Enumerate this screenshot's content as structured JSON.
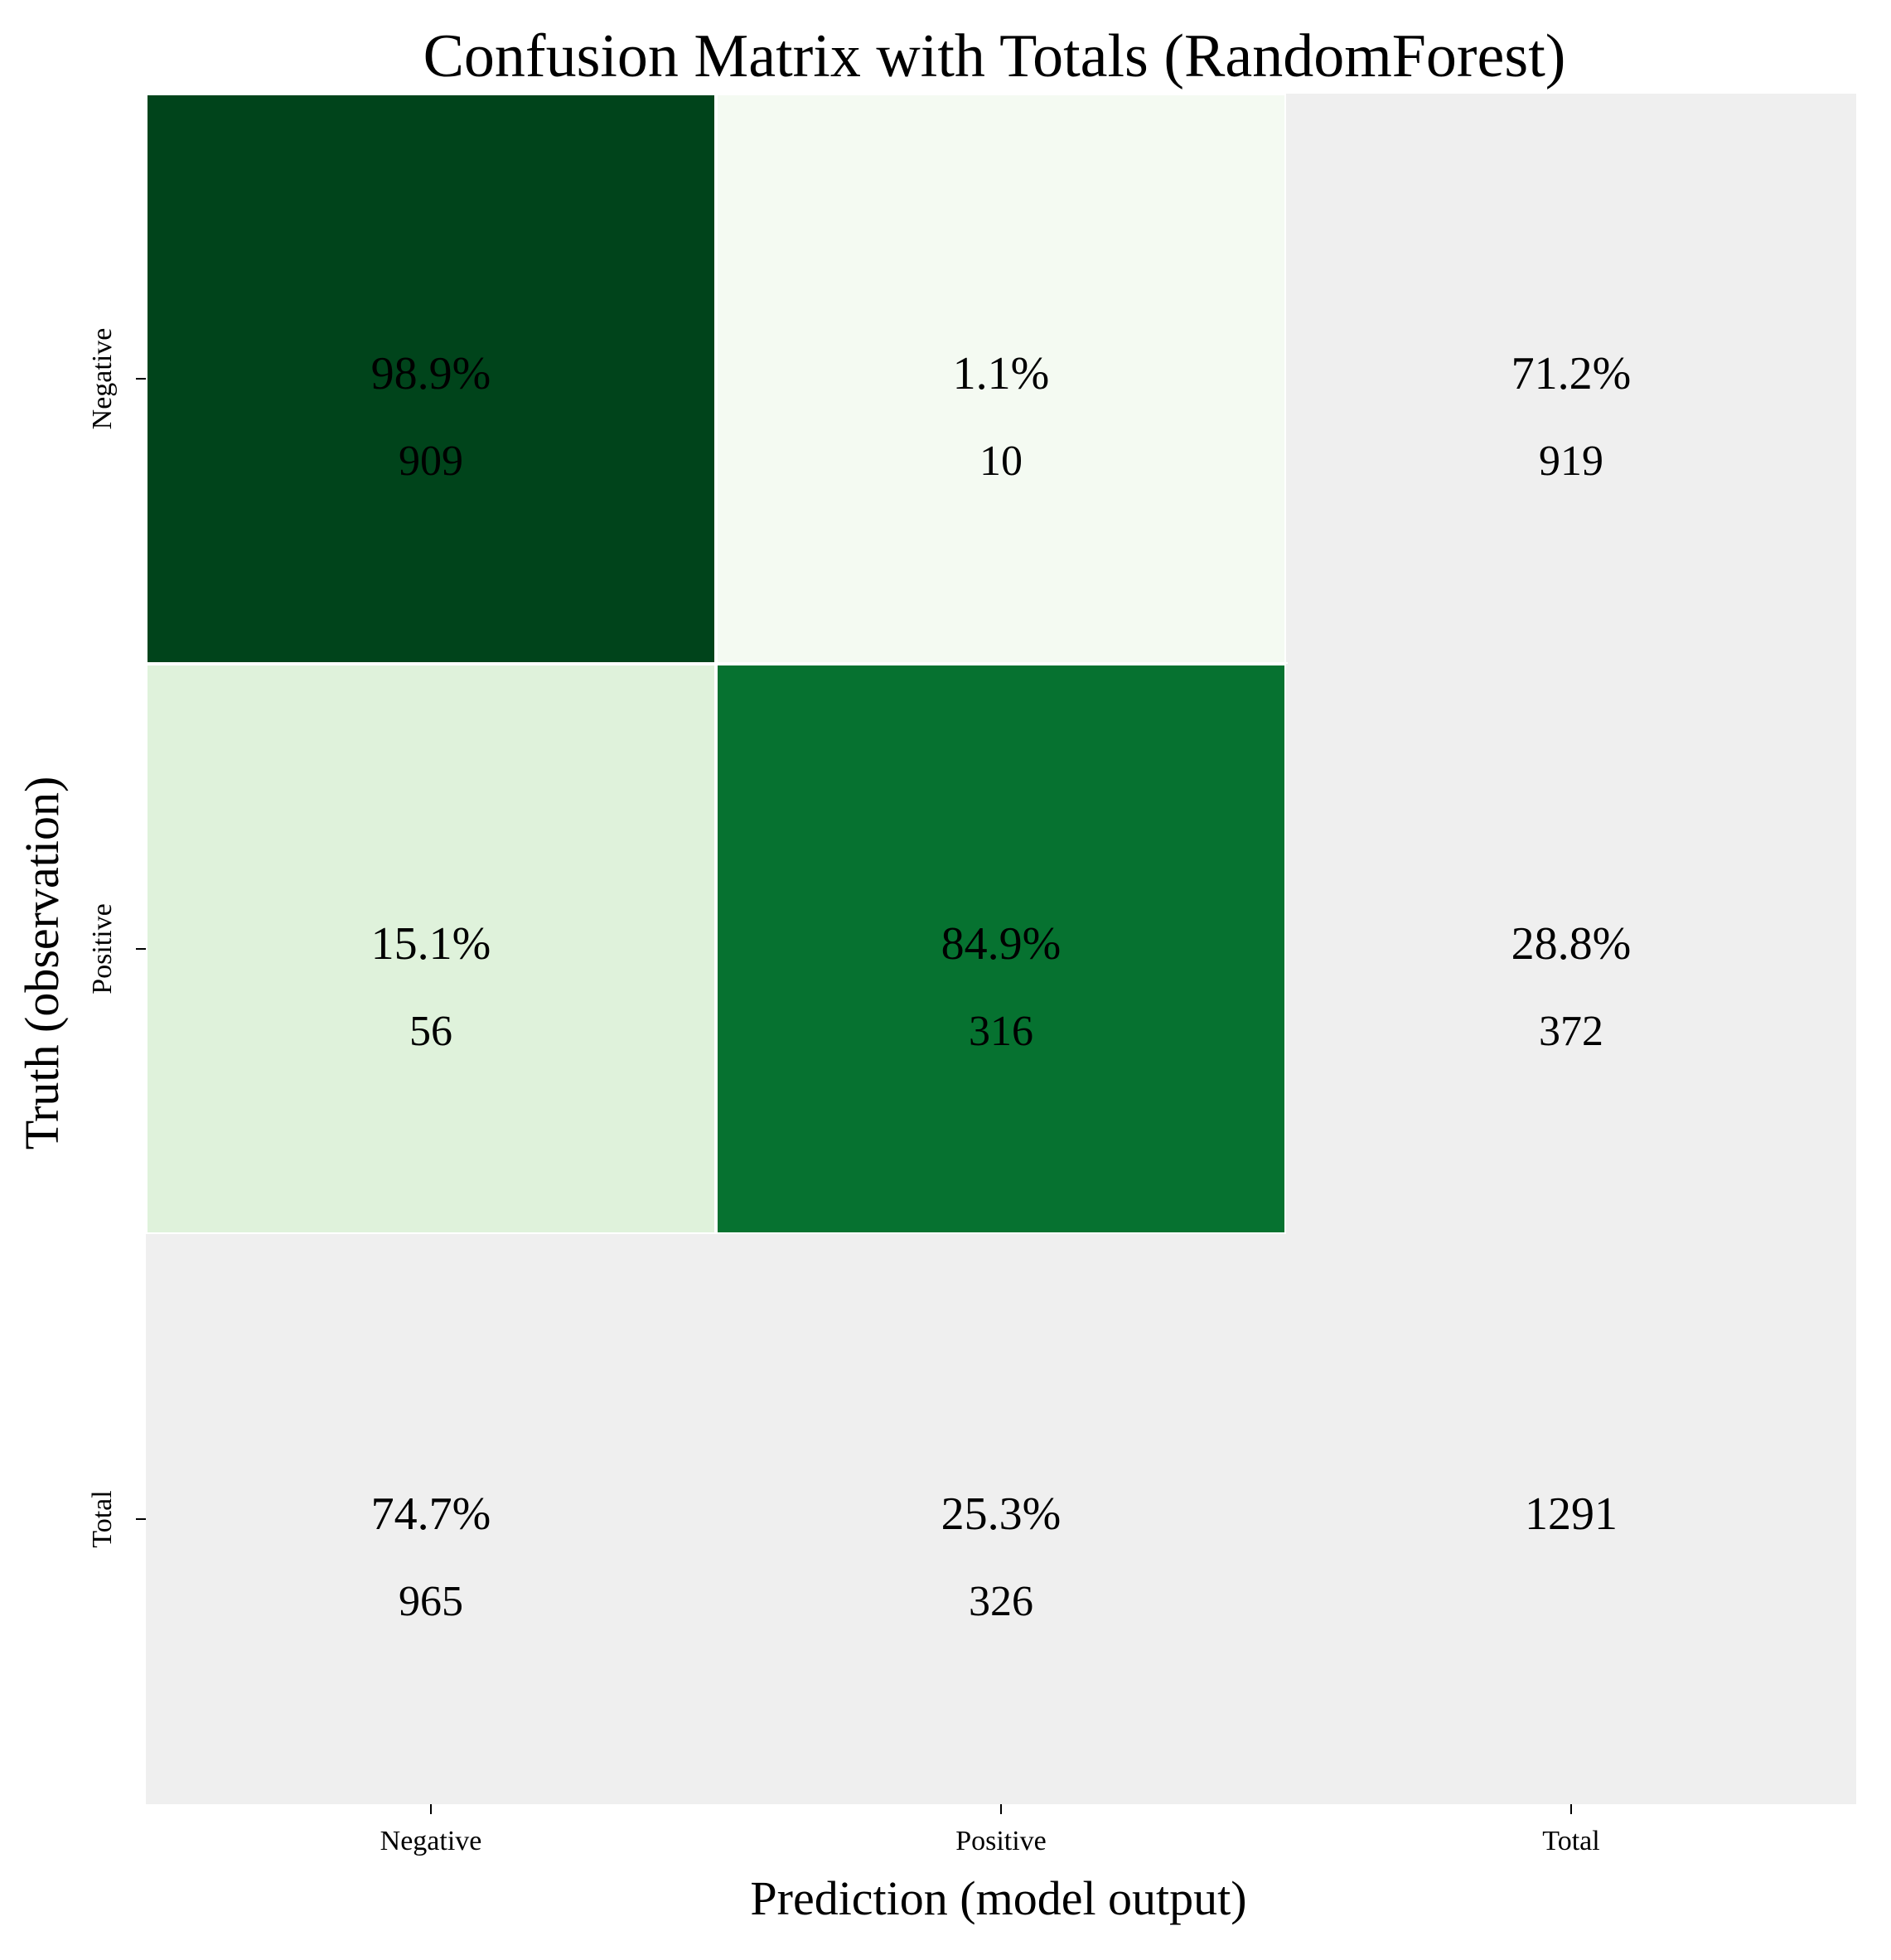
{
  "chart_data": {
    "type": "heatmap",
    "title": "Confusion Matrix with Totals (RandomForest)",
    "xlabel": "Prediction (model output)",
    "ylabel": "Truth (observation)",
    "x_categories": [
      "Negative",
      "Positive",
      "Total"
    ],
    "y_categories": [
      "Negative",
      "Positive",
      "Total"
    ],
    "colormap": "Greens",
    "colors": {
      "true_negative": "#00441b",
      "false_positive": "#f4faf2",
      "false_negative": "#dff2db",
      "true_positive": "#067230",
      "totals": "#efefef",
      "grid_line": "#ffffff"
    },
    "cells": [
      [
        {
          "percent": "98.9%",
          "count": "909"
        },
        {
          "percent": "1.1%",
          "count": "10"
        },
        {
          "percent": "71.2%",
          "count": "919"
        }
      ],
      [
        {
          "percent": "15.1%",
          "count": "56"
        },
        {
          "percent": "84.9%",
          "count": "316"
        },
        {
          "percent": "28.8%",
          "count": "372"
        }
      ],
      [
        {
          "percent": "74.7%",
          "count": "965"
        },
        {
          "percent": "25.3%",
          "count": "326"
        },
        {
          "percent": "1291",
          "count": ""
        }
      ]
    ]
  }
}
